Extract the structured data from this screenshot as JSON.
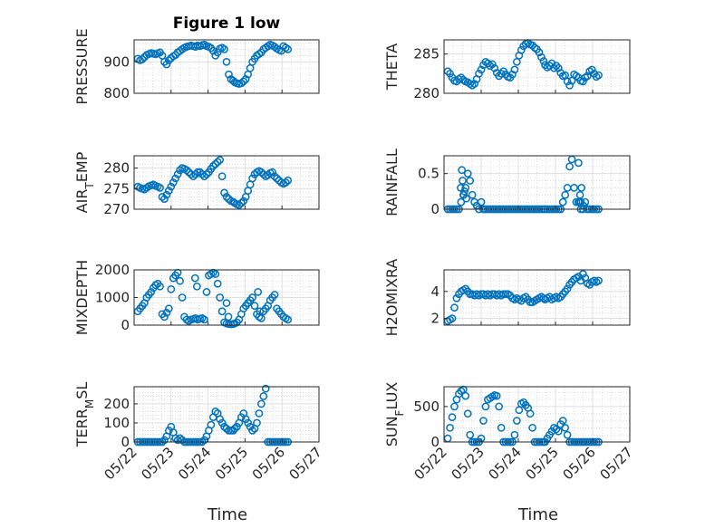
{
  "figure": {
    "title": "Figure 1 low",
    "marker_color": "#0072bd",
    "x_ticks": [
      "05/22",
      "05/23",
      "05/24",
      "05/25",
      "05/26",
      "05/27"
    ],
    "x_label": "Time"
  },
  "chart_data": [
    {
      "type": "scatter",
      "ylabel": "PRESSURE",
      "title": "Figure 1 low",
      "xlim": [
        0,
        5
      ],
      "ylim": [
        800,
        970
      ],
      "yticks": [
        800,
        900
      ],
      "x_ticks_shown": false,
      "x": [
        0.1,
        0.16,
        0.22,
        0.28,
        0.34,
        0.4,
        0.46,
        0.52,
        0.58,
        0.64,
        0.7,
        0.76,
        0.82,
        0.88,
        0.94,
        1.0,
        1.06,
        1.12,
        1.18,
        1.24,
        1.3,
        1.36,
        1.42,
        1.48,
        1.54,
        1.6,
        1.66,
        1.72,
        1.78,
        1.84,
        1.9,
        1.96,
        2.02,
        2.08,
        2.14,
        2.2,
        2.26,
        2.32,
        2.38,
        2.44,
        2.5,
        2.56,
        2.62,
        2.68,
        2.72,
        2.78,
        2.84,
        2.9,
        2.96,
        3.02,
        3.08,
        3.14,
        3.2,
        3.26,
        3.32,
        3.38,
        3.44,
        3.5,
        3.56,
        3.62,
        3.68,
        3.74,
        3.8,
        3.86,
        3.92,
        3.98,
        4.04,
        4.1,
        4.16
      ],
      "y": [
        910,
        905,
        908,
        915,
        922,
        925,
        928,
        926,
        924,
        927,
        930,
        920,
        900,
        892,
        905,
        912,
        918,
        922,
        930,
        935,
        940,
        945,
        948,
        950,
        952,
        950,
        948,
        952,
        950,
        953,
        955,
        950,
        948,
        944,
        935,
        920,
        930,
        942,
        945,
        940,
        900,
        860,
        845,
        840,
        835,
        832,
        830,
        832,
        838,
        845,
        860,
        880,
        900,
        910,
        920,
        925,
        930,
        940,
        945,
        950,
        955,
        952,
        948,
        942,
        938,
        935,
        950,
        945,
        940
      ]
    },
    {
      "type": "scatter",
      "ylabel": "THETA",
      "xlim": [
        0,
        5
      ],
      "ylim": [
        280,
        286.8
      ],
      "yticks": [
        280,
        285
      ],
      "x_ticks_shown": false,
      "x": [
        0.1,
        0.16,
        0.22,
        0.28,
        0.34,
        0.4,
        0.46,
        0.52,
        0.58,
        0.64,
        0.7,
        0.76,
        0.82,
        0.88,
        0.94,
        1.0,
        1.06,
        1.12,
        1.18,
        1.24,
        1.3,
        1.36,
        1.42,
        1.48,
        1.54,
        1.6,
        1.66,
        1.72,
        1.78,
        1.84,
        1.9,
        1.96,
        2.02,
        2.08,
        2.14,
        2.2,
        2.26,
        2.32,
        2.38,
        2.44,
        2.5,
        2.56,
        2.62,
        2.68,
        2.72,
        2.78,
        2.84,
        2.9,
        2.96,
        3.02,
        3.08,
        3.14,
        3.2,
        3.26,
        3.32,
        3.38,
        3.44,
        3.5,
        3.56,
        3.62,
        3.68,
        3.74,
        3.8,
        3.86,
        3.92,
        3.98,
        4.04,
        4.1,
        4.16
      ],
      "y": [
        282.8,
        282.5,
        282,
        281.6,
        281.5,
        281.8,
        282,
        281.7,
        281.5,
        281.4,
        281.2,
        281,
        281.2,
        281.8,
        282.5,
        283,
        283.6,
        284,
        283.8,
        283.5,
        283.7,
        283.2,
        282.6,
        282.2,
        282.5,
        282.8,
        282.4,
        282.1,
        282,
        282.4,
        283,
        284,
        284.8,
        285.5,
        286,
        286.3,
        286.4,
        286.2,
        286.1,
        285.8,
        285.6,
        285.2,
        284.6,
        284.1,
        283.6,
        283.3,
        283.5,
        283.8,
        283.2,
        283.5,
        283.2,
        282.6,
        282.2,
        282.3,
        281.5,
        281,
        281.6,
        282.4,
        282.2,
        282,
        281.6,
        281.5,
        282,
        282.2,
        282.8,
        283,
        282.5,
        282.1,
        282.3
      ]
    },
    {
      "type": "scatter",
      "ylabel": "AIR_TEMP",
      "ylabel_main": "AIR",
      "ylabel_sub": "T",
      "ylabel_rest": "EMP",
      "xlim": [
        0,
        5
      ],
      "ylim": [
        270,
        283
      ],
      "yticks": [
        270,
        275,
        280
      ],
      "x_ticks_shown": false,
      "x": [
        0.1,
        0.16,
        0.22,
        0.28,
        0.34,
        0.4,
        0.46,
        0.52,
        0.58,
        0.64,
        0.7,
        0.76,
        0.82,
        0.88,
        0.94,
        1.0,
        1.06,
        1.12,
        1.18,
        1.24,
        1.3,
        1.36,
        1.42,
        1.48,
        1.54,
        1.6,
        1.66,
        1.72,
        1.78,
        1.84,
        1.9,
        1.96,
        2.02,
        2.08,
        2.14,
        2.2,
        2.26,
        2.32,
        2.38,
        2.44,
        2.5,
        2.56,
        2.62,
        2.68,
        2.72,
        2.78,
        2.84,
        2.9,
        2.96,
        3.02,
        3.08,
        3.14,
        3.2,
        3.26,
        3.32,
        3.38,
        3.44,
        3.5,
        3.56,
        3.62,
        3.68,
        3.74,
        3.8,
        3.86,
        3.92,
        3.98,
        4.04,
        4.1,
        4.16
      ],
      "y": [
        275.5,
        275.2,
        275,
        274.8,
        275.2,
        275.6,
        275.8,
        276,
        275.7,
        275.5,
        275.2,
        273,
        272.5,
        273.5,
        274.5,
        275.5,
        276.5,
        277.5,
        278.5,
        279.5,
        280,
        279.8,
        279.5,
        279,
        278.5,
        278,
        278.5,
        279,
        279,
        278.5,
        278,
        278.5,
        279,
        279.8,
        280.5,
        281,
        281.5,
        282,
        278,
        274,
        273,
        272.5,
        272,
        271.8,
        271.5,
        271.2,
        271,
        271.5,
        272,
        273,
        274.5,
        276,
        277.5,
        278.5,
        279,
        279.3,
        279,
        278.5,
        278,
        278.3,
        278.8,
        279,
        278,
        277.5,
        277,
        276.5,
        276.2,
        276.5,
        277
      ]
    },
    {
      "type": "scatter",
      "ylabel": "RAINFALL",
      "xlim": [
        0,
        5
      ],
      "ylim": [
        0,
        0.75
      ],
      "yticks": [
        0,
        0.5
      ],
      "x_ticks_shown": false,
      "x": [
        0.1,
        0.16,
        0.22,
        0.28,
        0.34,
        0.4,
        0.46,
        0.52,
        0.58,
        0.64,
        0.7,
        0.76,
        0.82,
        0.88,
        0.94,
        1.0,
        1.06,
        1.12,
        1.18,
        1.24,
        1.3,
        1.36,
        1.42,
        1.48,
        1.54,
        1.6,
        1.66,
        1.72,
        1.78,
        1.84,
        1.9,
        1.96,
        2.02,
        2.08,
        2.14,
        2.2,
        2.26,
        2.32,
        2.38,
        2.44,
        2.5,
        2.56,
        2.62,
        2.68,
        2.72,
        2.78,
        2.84,
        2.9,
        2.96,
        3.02,
        3.08,
        3.14,
        3.2,
        3.26,
        3.32,
        3.38,
        3.44,
        3.5,
        3.56,
        3.62,
        3.68,
        3.74,
        3.8,
        3.86,
        3.92,
        3.98,
        4.04,
        4.1,
        4.16,
        0.45,
        0.5,
        0.55,
        0.6,
        0.48,
        0.53,
        3.62,
        3.66,
        3.7,
        3.75,
        3.64,
        3.68
      ],
      "y": [
        0,
        0,
        0,
        0,
        0,
        0,
        0.1,
        0.2,
        0.3,
        0.5,
        0.4,
        0.2,
        0.1,
        0.05,
        0,
        0.1,
        0,
        0,
        0,
        0,
        0,
        0,
        0,
        0,
        0,
        0,
        0,
        0,
        0,
        0,
        0,
        0,
        0,
        0,
        0,
        0,
        0,
        0,
        0,
        0,
        0,
        0,
        0,
        0,
        0,
        0,
        0,
        0,
        0,
        0,
        0,
        0,
        0.1,
        0.2,
        0.3,
        0.6,
        0.7,
        0.3,
        0.1,
        0.1,
        0.1,
        0,
        0.1,
        0,
        0,
        0,
        0,
        0,
        0,
        0.3,
        0.4,
        0.25,
        0.15,
        0.55,
        0.2,
        0.65,
        0.2,
        0.3,
        0.05,
        0.1,
        0
      ]
    },
    {
      "type": "scatter",
      "ylabel": "MIXDEPTH",
      "xlim": [
        0,
        5
      ],
      "ylim": [
        0,
        2000
      ],
      "yticks": [
        0,
        1000,
        2000
      ],
      "x_ticks_shown": false,
      "x": [
        0.1,
        0.16,
        0.22,
        0.28,
        0.34,
        0.4,
        0.46,
        0.52,
        0.58,
        0.64,
        0.7,
        0.76,
        0.82,
        0.88,
        0.94,
        1.0,
        1.06,
        1.12,
        1.18,
        1.24,
        1.3,
        1.36,
        1.42,
        1.48,
        1.54,
        1.6,
        1.66,
        1.72,
        1.78,
        1.84,
        1.9,
        1.96,
        2.02,
        2.08,
        2.14,
        2.2,
        2.26,
        2.32,
        2.38,
        2.44,
        2.5,
        2.56,
        2.62,
        2.68,
        2.72,
        2.78,
        2.84,
        2.9,
        2.96,
        3.02,
        3.08,
        3.14,
        3.2,
        3.26,
        3.32,
        3.38,
        3.44,
        3.5,
        3.56,
        3.62,
        3.68,
        3.74,
        3.8,
        3.86,
        3.92,
        3.98,
        4.04,
        4.1,
        4.16,
        1.65,
        1.7,
        2.5,
        2.55,
        3.35,
        3.4
      ],
      "y": [
        500,
        600,
        700,
        800,
        1000,
        1100,
        1200,
        1350,
        1450,
        1500,
        1400,
        400,
        300,
        450,
        600,
        1300,
        1700,
        1800,
        1900,
        1600,
        1000,
        300,
        200,
        150,
        200,
        220,
        250,
        200,
        230,
        250,
        200,
        1200,
        1800,
        1850,
        1900,
        1850,
        1500,
        1000,
        500,
        100,
        60,
        40,
        30,
        40,
        60,
        100,
        200,
        400,
        600,
        700,
        800,
        900,
        1000,
        700,
        400,
        300,
        250,
        500,
        600,
        700,
        900,
        1000,
        1100,
        600,
        500,
        400,
        300,
        250,
        200,
        1700,
        1400,
        800,
        300,
        1200,
        500
      ]
    },
    {
      "type": "scatter",
      "ylabel": "H2OMIXRA",
      "xlim": [
        0,
        5
      ],
      "ylim": [
        1.5,
        5.6
      ],
      "yticks": [
        2,
        4
      ],
      "x_ticks_shown": false,
      "x": [
        0.1,
        0.16,
        0.22,
        0.28,
        0.34,
        0.4,
        0.46,
        0.52,
        0.58,
        0.64,
        0.7,
        0.76,
        0.82,
        0.88,
        0.94,
        1.0,
        1.06,
        1.12,
        1.18,
        1.24,
        1.3,
        1.36,
        1.42,
        1.48,
        1.54,
        1.6,
        1.66,
        1.72,
        1.78,
        1.84,
        1.9,
        1.96,
        2.02,
        2.08,
        2.14,
        2.2,
        2.26,
        2.32,
        2.38,
        2.44,
        2.5,
        2.56,
        2.62,
        2.68,
        2.72,
        2.78,
        2.84,
        2.9,
        2.96,
        3.02,
        3.08,
        3.14,
        3.2,
        3.26,
        3.32,
        3.38,
        3.44,
        3.5,
        3.56,
        3.62,
        3.68,
        3.74,
        3.8,
        3.86,
        3.92,
        3.98,
        4.04,
        4.1,
        4.16
      ],
      "y": [
        1.8,
        1.9,
        2.0,
        2.8,
        3.5,
        3.8,
        4.0,
        4.1,
        4.2,
        4.0,
        3.8,
        3.8,
        3.7,
        3.8,
        3.7,
        3.8,
        3.8,
        3.7,
        3.8,
        3.7,
        3.8,
        3.8,
        3.7,
        3.8,
        3.7,
        3.8,
        3.8,
        3.8,
        3.7,
        3.5,
        3.4,
        3.5,
        3.4,
        3.3,
        3.5,
        3.6,
        3.4,
        3.2,
        3.2,
        3.3,
        3.4,
        3.5,
        3.6,
        3.5,
        3.4,
        3.5,
        3.6,
        3.4,
        3.5,
        3.6,
        3.5,
        3.6,
        3.8,
        4.0,
        4.2,
        4.5,
        4.7,
        4.9,
        5.0,
        5.1,
        4.8,
        5.3,
        5.0,
        4.6,
        4.5,
        4.7,
        4.8,
        4.7,
        4.8
      ]
    },
    {
      "type": "scatter",
      "ylabel": "TERR_MSL",
      "ylabel_main": "TERR",
      "ylabel_sub": "M",
      "ylabel_rest": "SL",
      "xlim": [
        0,
        5
      ],
      "ylim": [
        0,
        290
      ],
      "yticks": [
        0,
        100,
        200
      ],
      "x_ticks_shown": true,
      "x": [
        0.1,
        0.16,
        0.22,
        0.28,
        0.34,
        0.4,
        0.46,
        0.52,
        0.58,
        0.64,
        0.7,
        0.76,
        0.82,
        0.88,
        0.94,
        1.0,
        1.06,
        1.12,
        1.18,
        1.24,
        1.3,
        1.36,
        1.42,
        1.48,
        1.54,
        1.6,
        1.66,
        1.72,
        1.78,
        1.84,
        1.9,
        1.96,
        2.02,
        2.08,
        2.14,
        2.2,
        2.26,
        2.32,
        2.38,
        2.44,
        2.5,
        2.56,
        2.62,
        2.68,
        2.72,
        2.78,
        2.84,
        2.9,
        2.96,
        3.02,
        3.08,
        3.14,
        3.2,
        3.26,
        3.32,
        3.38,
        3.44,
        3.5,
        3.56,
        3.62,
        3.68,
        3.74,
        3.8,
        3.86,
        3.92,
        3.98,
        4.04,
        4.1,
        4.16
      ],
      "y": [
        0,
        0,
        0,
        0,
        0,
        0,
        0,
        0,
        0,
        0,
        0,
        0,
        10,
        30,
        60,
        80,
        50,
        20,
        10,
        20,
        10,
        0,
        0,
        0,
        0,
        0,
        0,
        0,
        0,
        0,
        10,
        30,
        60,
        90,
        130,
        160,
        150,
        120,
        100,
        80,
        70,
        60,
        60,
        60,
        70,
        80,
        100,
        130,
        150,
        120,
        100,
        80,
        60,
        70,
        100,
        150,
        200,
        240,
        280,
        0,
        0,
        0,
        0,
        0,
        0,
        0,
        0,
        0,
        0
      ]
    },
    {
      "type": "scatter",
      "ylabel": "SUN_FLUX",
      "ylabel_main": "SUN",
      "ylabel_sub": "F",
      "ylabel_rest": "LUX",
      "xlim": [
        0,
        5
      ],
      "ylim": [
        0,
        780
      ],
      "yticks": [
        0,
        500
      ],
      "x_ticks_shown": true,
      "x": [
        0.1,
        0.16,
        0.22,
        0.28,
        0.34,
        0.4,
        0.46,
        0.52,
        0.58,
        0.64,
        0.7,
        0.76,
        0.82,
        0.88,
        0.94,
        1.0,
        1.06,
        1.12,
        1.18,
        1.24,
        1.3,
        1.36,
        1.42,
        1.48,
        1.54,
        1.6,
        1.66,
        1.72,
        1.78,
        1.84,
        1.9,
        1.96,
        2.02,
        2.08,
        2.14,
        2.2,
        2.26,
        2.32,
        2.38,
        2.44,
        2.5,
        2.56,
        2.62,
        2.68,
        2.72,
        2.78,
        2.84,
        2.9,
        2.96,
        3.02,
        3.08,
        3.14,
        3.2,
        3.26,
        3.32,
        3.38,
        3.44,
        3.5,
        3.56,
        3.62,
        3.68,
        3.74,
        3.8,
        3.86,
        3.92,
        3.98,
        4.04,
        4.1,
        4.16
      ],
      "y": [
        50,
        200,
        350,
        500,
        600,
        680,
        720,
        740,
        650,
        400,
        100,
        0,
        0,
        0,
        0,
        50,
        300,
        500,
        600,
        620,
        640,
        660,
        650,
        500,
        200,
        0,
        0,
        0,
        0,
        0,
        100,
        300,
        450,
        540,
        560,
        520,
        480,
        400,
        200,
        0,
        0,
        0,
        0,
        0,
        0,
        50,
        100,
        150,
        200,
        180,
        150,
        250,
        300,
        200,
        100,
        0,
        0,
        0,
        0,
        0,
        0,
        0,
        0,
        0,
        0,
        0,
        0,
        0,
        0
      ]
    }
  ]
}
